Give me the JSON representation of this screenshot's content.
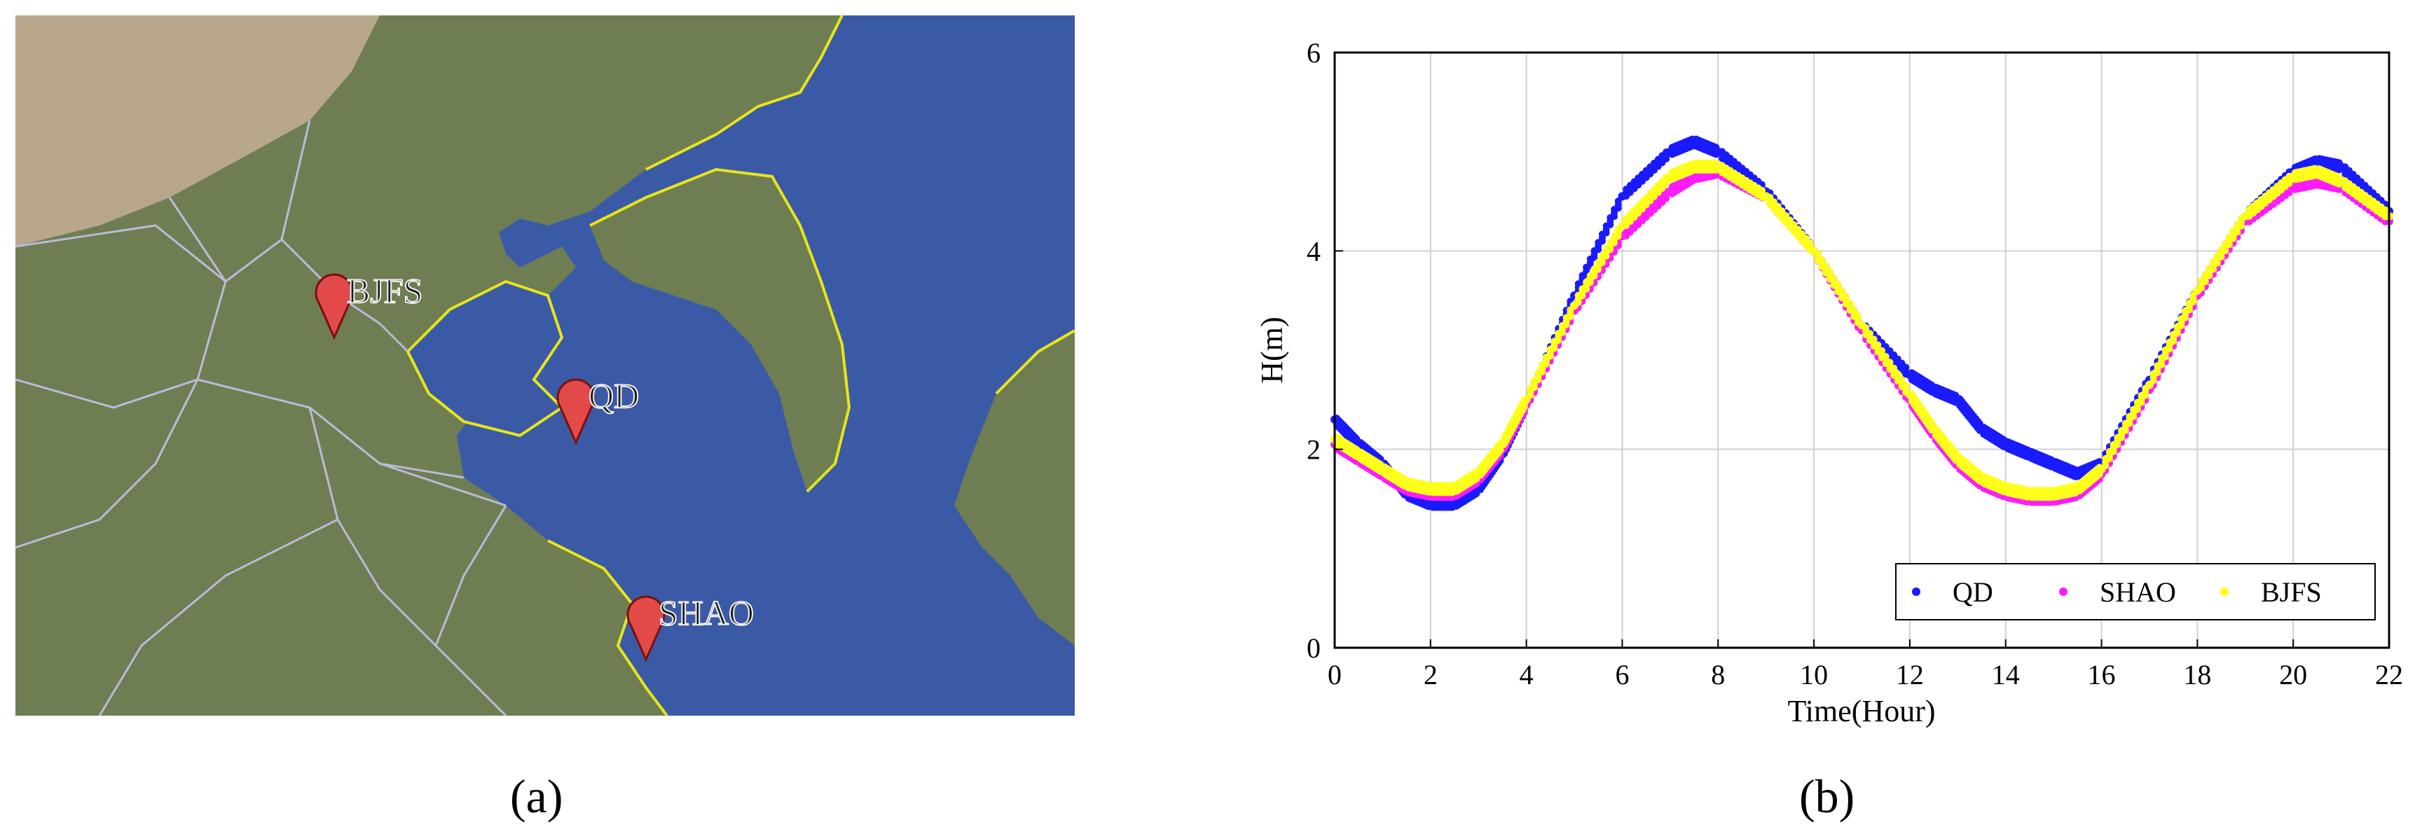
{
  "panel_a": {
    "label": "(a)",
    "markers": [
      {
        "name": "BJFS"
      },
      {
        "name": "QD"
      },
      {
        "name": "SHAO"
      }
    ],
    "colors": {
      "sea": "#3b5aa6",
      "land": "#6f7d52",
      "desert": "#b9a78d",
      "border": "#b8bcd8",
      "coast": "#e6e61a",
      "marker": "#e24a4a"
    }
  },
  "panel_b": {
    "label": "(b)"
  },
  "chart_data": {
    "type": "scatter",
    "xlabel": "Time(Hour)",
    "ylabel": "H(m)",
    "xlim": [
      0,
      22
    ],
    "ylim": [
      0,
      6
    ],
    "xticks": [
      0,
      2,
      4,
      6,
      8,
      10,
      12,
      14,
      16,
      18,
      20,
      22
    ],
    "yticks": [
      0,
      2,
      4,
      6
    ],
    "grid": true,
    "legend_position": "bottom-right",
    "series": [
      {
        "name": "QD",
        "color": "#1a1aff",
        "x": [
          0,
          0.5,
          1,
          1.5,
          2,
          2.5,
          3,
          3.5,
          4,
          5,
          6,
          7,
          7.5,
          8,
          9,
          10,
          11,
          12,
          12.5,
          13,
          13.5,
          14,
          14.5,
          15,
          15.5,
          16,
          17,
          18,
          19,
          20,
          20.5,
          21,
          22
        ],
        "y": [
          2.3,
          2.05,
          1.85,
          1.55,
          1.45,
          1.45,
          1.6,
          1.95,
          2.45,
          3.55,
          4.55,
          5.0,
          5.1,
          5.0,
          4.6,
          4.0,
          3.25,
          2.75,
          2.6,
          2.5,
          2.2,
          2.05,
          1.95,
          1.85,
          1.75,
          1.85,
          2.7,
          3.6,
          4.35,
          4.8,
          4.9,
          4.85,
          4.4
        ]
      },
      {
        "name": "SHAO",
        "color": "#ff1aff",
        "x": [
          0,
          0.5,
          1,
          1.5,
          2,
          2.5,
          3,
          3.5,
          4,
          5,
          6,
          7,
          7.5,
          8,
          9,
          10,
          11,
          12,
          12.5,
          13,
          13.5,
          14,
          14.5,
          15,
          15.5,
          16,
          17,
          18,
          19,
          20,
          20.5,
          21,
          22
        ],
        "y": [
          2.05,
          1.9,
          1.75,
          1.6,
          1.55,
          1.55,
          1.7,
          2.0,
          2.45,
          3.4,
          4.15,
          4.6,
          4.75,
          4.8,
          4.55,
          4.0,
          3.2,
          2.5,
          2.15,
          1.85,
          1.65,
          1.55,
          1.5,
          1.5,
          1.55,
          1.75,
          2.6,
          3.55,
          4.3,
          4.65,
          4.7,
          4.65,
          4.3
        ]
      },
      {
        "name": "BJFS",
        "color": "#ffff1a",
        "x": [
          0,
          0.5,
          1,
          1.5,
          2,
          2.5,
          3,
          3.5,
          4,
          5,
          6,
          7,
          7.5,
          8,
          9,
          10,
          11,
          12,
          12.5,
          13,
          13.5,
          14,
          14.5,
          15,
          15.5,
          16,
          17,
          18,
          19,
          20,
          20.5,
          21,
          22
        ],
        "y": [
          2.1,
          1.95,
          1.8,
          1.65,
          1.6,
          1.6,
          1.75,
          2.05,
          2.5,
          3.45,
          4.25,
          4.75,
          4.85,
          4.85,
          4.55,
          4.0,
          3.25,
          2.55,
          2.2,
          1.9,
          1.7,
          1.6,
          1.55,
          1.55,
          1.6,
          1.8,
          2.65,
          3.6,
          4.35,
          4.75,
          4.8,
          4.7,
          4.35
        ]
      }
    ]
  }
}
